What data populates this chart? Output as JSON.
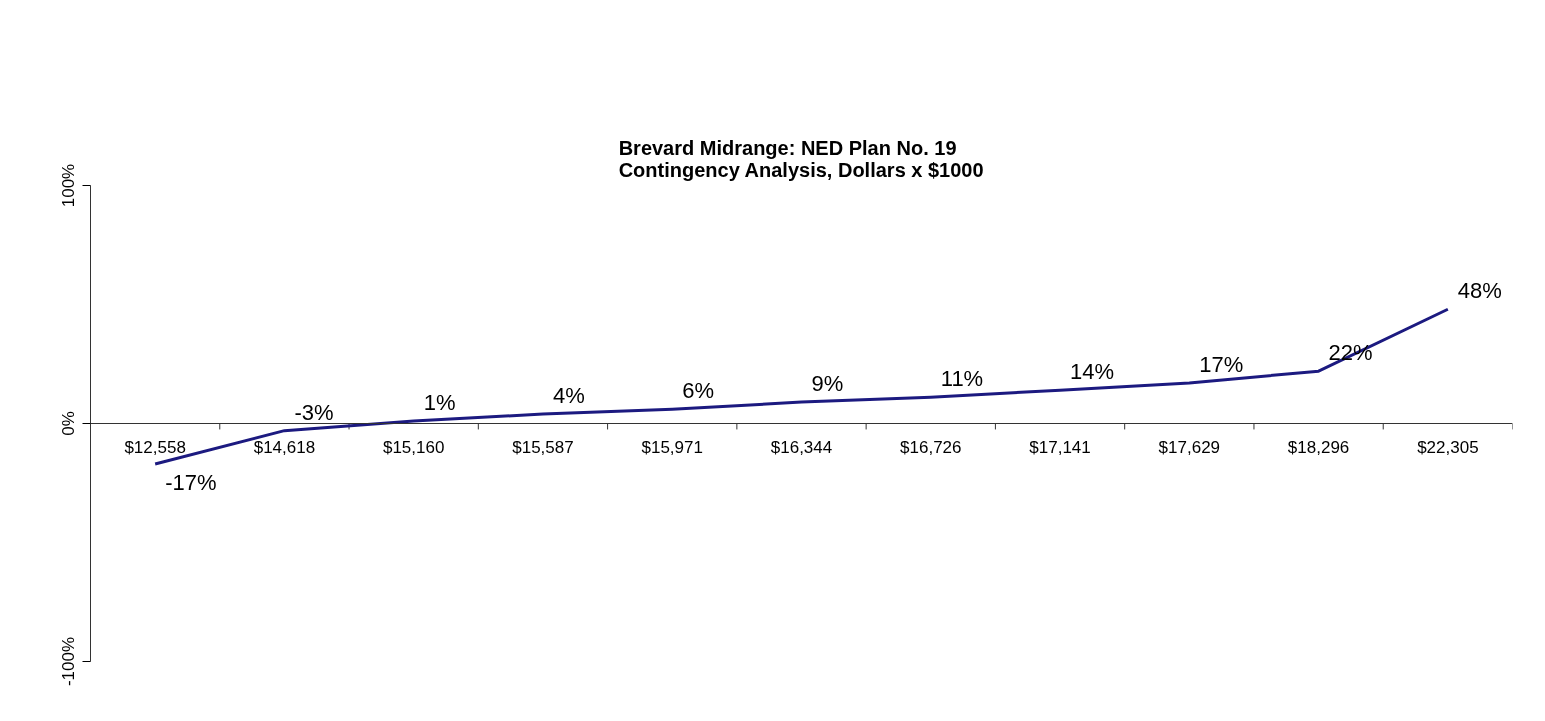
{
  "chart_data": {
    "type": "line",
    "title": "Brevard Midrange: NED Plan No. 19\nContingency Analysis, Dollars x $1000",
    "categories": [
      "$12,558",
      "$14,618",
      "$15,160",
      "$15,587",
      "$15,971",
      "$16,344",
      "$16,726",
      "$17,141",
      "$17,629",
      "$18,296",
      "$22,305"
    ],
    "series": [
      {
        "color": "#1c1a80",
        "values": [
          -17,
          -3,
          1,
          4,
          6,
          9,
          11,
          14,
          17,
          22,
          48
        ],
        "value_labels": [
          "-17%",
          "-3%",
          "1%",
          "4%",
          "6%",
          "9%",
          "11%",
          "14%",
          "17%",
          "22%",
          "48%"
        ]
      }
    ],
    "ylim": [
      -100,
      100
    ],
    "yticks": [
      {
        "value": -100,
        "label": "-100%"
      },
      {
        "value": 0,
        "label": "0%"
      },
      {
        "value": 100,
        "label": "100%"
      }
    ],
    "grid": false,
    "marker": "none",
    "line_style": "solid"
  }
}
